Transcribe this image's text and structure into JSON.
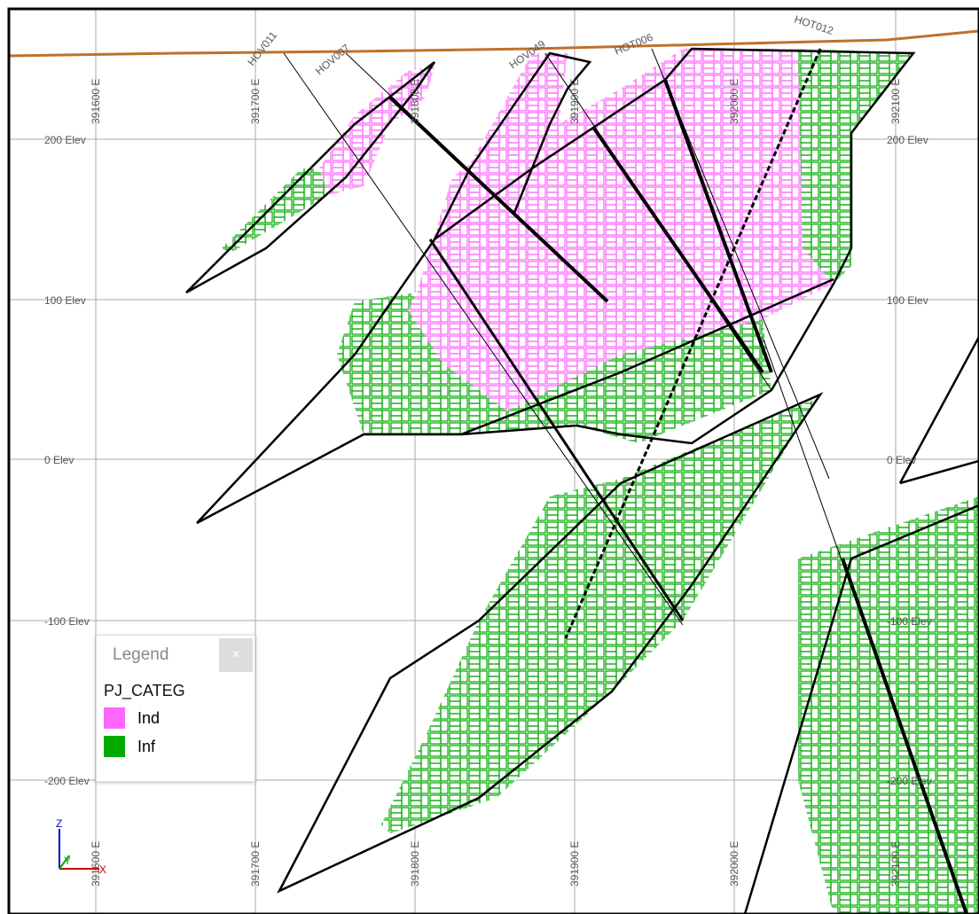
{
  "section": {
    "elevations": [
      "200 Elev",
      "100 Elev",
      "0 Elev",
      "-100 Elev",
      "-200 Elev"
    ],
    "eastings": [
      "391600 E",
      "391700 E",
      "391800 E",
      "391900 E",
      "392000 E",
      "392100 E"
    ],
    "holes": [
      "HOV011",
      "HOV007",
      "HOV049",
      "HOT006",
      "HOT012"
    ],
    "axes": {
      "z": "Z",
      "y": "Y",
      "x": "X"
    }
  },
  "legend": {
    "title": "Legend",
    "close": "×",
    "field": "PJ_CATEG",
    "items": [
      {
        "label": "Ind",
        "color": "#ff66ff"
      },
      {
        "label": "Inf",
        "color": "#00aa00"
      }
    ]
  }
}
